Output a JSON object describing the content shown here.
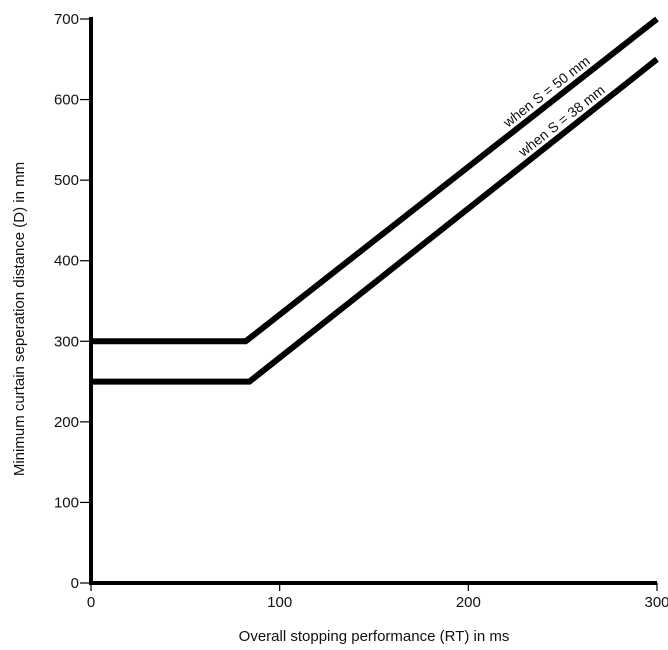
{
  "chart_data": {
    "type": "line",
    "title": "",
    "xlabel": "Overall stopping performance (RT) in ms",
    "ylabel": "Minimum curtain seperation distance (D) in mm",
    "xlim": [
      0,
      300
    ],
    "ylim": [
      0,
      700
    ],
    "xticks": [
      0,
      100,
      200,
      300
    ],
    "yticks": [
      0,
      100,
      200,
      300,
      400,
      500,
      600,
      700
    ],
    "grid": false,
    "series": [
      {
        "label": "when S = 50 mm",
        "color": "#000000",
        "x": [
          0,
          82,
          300
        ],
        "y": [
          300,
          300,
          700
        ]
      },
      {
        "label": "when S = 38 mm",
        "color": "#000000",
        "x": [
          0,
          84,
          300
        ],
        "y": [
          250,
          250,
          650
        ]
      }
    ]
  }
}
